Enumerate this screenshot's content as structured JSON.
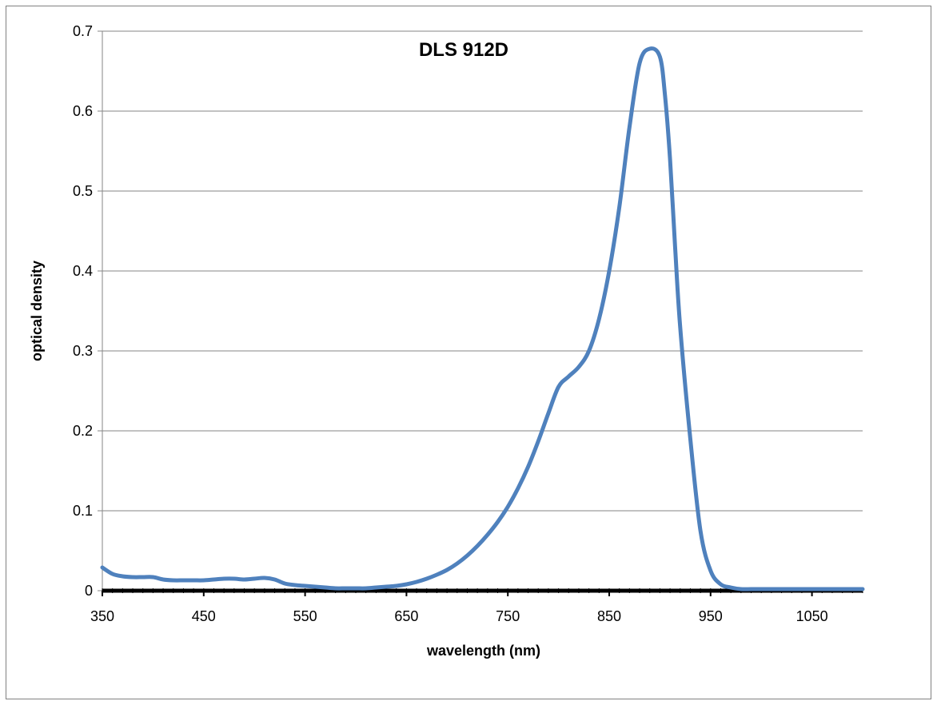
{
  "chart_data": {
    "type": "line",
    "title": "DLS 912D",
    "xlabel": "wavelength (nm)",
    "ylabel": "optical density",
    "xlim": [
      350,
      1100
    ],
    "ylim": [
      0,
      0.7
    ],
    "x_ticks": [
      350,
      450,
      550,
      650,
      750,
      850,
      950,
      1050
    ],
    "y_ticks": [
      0,
      0.1,
      0.2,
      0.3,
      0.4,
      0.5,
      0.6,
      0.7
    ],
    "grid": "horizontal",
    "legend": "none",
    "series": [
      {
        "color": "#4F81BD",
        "x": [
          350,
          360,
          370,
          380,
          390,
          400,
          410,
          420,
          430,
          440,
          450,
          460,
          470,
          480,
          490,
          500,
          510,
          520,
          530,
          540,
          550,
          560,
          570,
          580,
          590,
          600,
          610,
          620,
          630,
          640,
          650,
          660,
          670,
          680,
          690,
          700,
          710,
          720,
          730,
          740,
          750,
          760,
          770,
          780,
          790,
          800,
          810,
          820,
          830,
          840,
          850,
          860,
          870,
          880,
          890,
          900,
          905,
          910,
          915,
          920,
          930,
          940,
          950,
          960,
          970,
          980,
          990,
          1000,
          1020,
          1050,
          1080,
          1100
        ],
        "y": [
          0.029,
          0.021,
          0.018,
          0.017,
          0.017,
          0.017,
          0.014,
          0.013,
          0.013,
          0.013,
          0.013,
          0.014,
          0.015,
          0.015,
          0.014,
          0.015,
          0.016,
          0.014,
          0.009,
          0.007,
          0.006,
          0.005,
          0.004,
          0.003,
          0.003,
          0.003,
          0.003,
          0.004,
          0.005,
          0.006,
          0.008,
          0.011,
          0.015,
          0.02,
          0.026,
          0.034,
          0.044,
          0.056,
          0.07,
          0.086,
          0.105,
          0.128,
          0.155,
          0.187,
          0.222,
          0.255,
          0.268,
          0.28,
          0.3,
          0.34,
          0.4,
          0.48,
          0.58,
          0.66,
          0.678,
          0.668,
          0.62,
          0.54,
          0.43,
          0.33,
          0.19,
          0.075,
          0.025,
          0.008,
          0.004,
          0.002,
          0.002,
          0.002,
          0.002,
          0.002,
          0.002,
          0.002
        ]
      }
    ]
  }
}
